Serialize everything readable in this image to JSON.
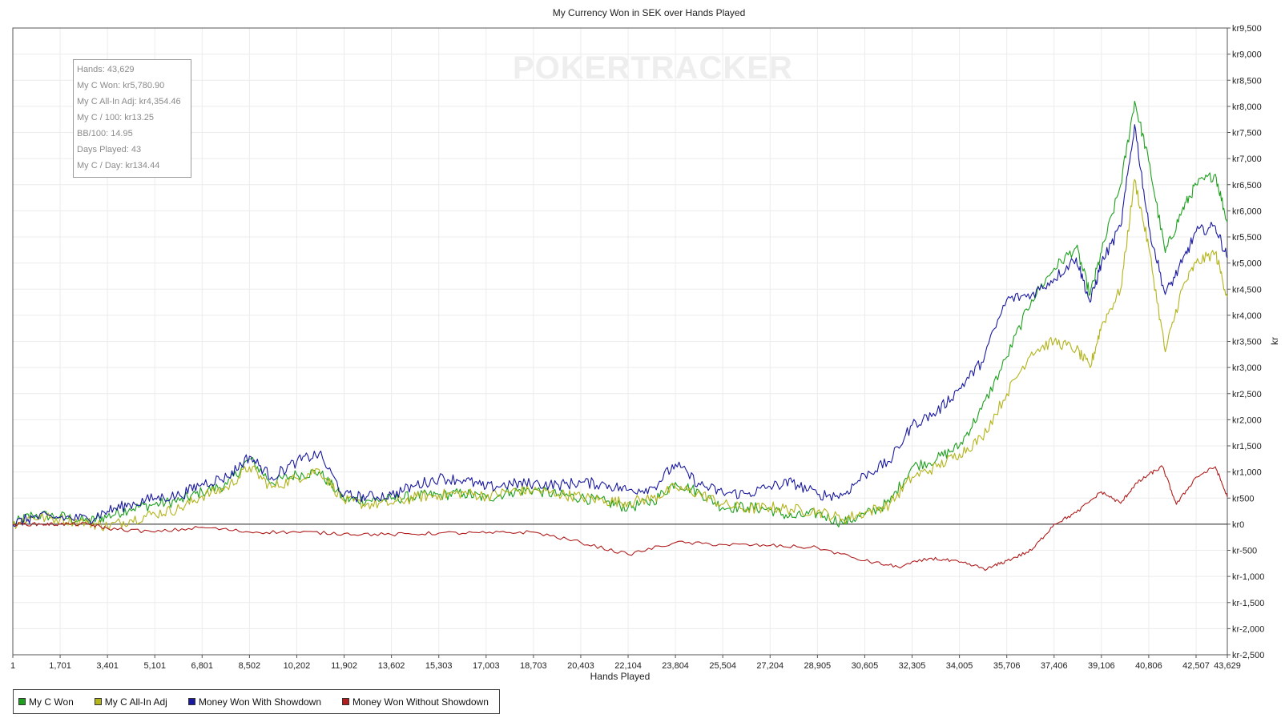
{
  "chart_data": {
    "type": "line",
    "title": "My Currency Won in SEK over Hands Played",
    "xlabel": "Hands Played",
    "ylabel": "kr",
    "xlim": [
      1,
      43629
    ],
    "ylim": [
      -2500,
      9500
    ],
    "x_ticks": [
      "1",
      "1,701",
      "3,401",
      "5,101",
      "6,801",
      "8,502",
      "10,202",
      "11,902",
      "13,602",
      "15,303",
      "17,003",
      "18,703",
      "20,403",
      "22,104",
      "23,804",
      "25,504",
      "27,204",
      "28,905",
      "30,605",
      "32,305",
      "34,005",
      "35,706",
      "37,406",
      "39,106",
      "40,806",
      "42,507",
      "43,629"
    ],
    "y_ticks": [
      "kr9,500",
      "kr9,000",
      "kr8,500",
      "kr8,000",
      "kr7,500",
      "kr7,000",
      "kr6,500",
      "kr6,000",
      "kr5,500",
      "kr5,000",
      "kr4,500",
      "kr4,000",
      "kr3,500",
      "kr3,000",
      "kr2,500",
      "kr2,000",
      "kr1,500",
      "kr1,000",
      "kr500",
      "kr0",
      "kr-500",
      "kr-1,000",
      "kr-1,500",
      "kr-2,000",
      "kr-2,500"
    ],
    "grid": true,
    "legend_position": "bottom-left",
    "watermark": "POKERTRACKER",
    "series": [
      {
        "name": "My C Won",
        "color": "#1ea01e",
        "points": [
          [
            1,
            0
          ],
          [
            700,
            180
          ],
          [
            1700,
            150
          ],
          [
            2700,
            50
          ],
          [
            3401,
            150
          ],
          [
            4200,
            300
          ],
          [
            5101,
            380
          ],
          [
            6000,
            450
          ],
          [
            6801,
            620
          ],
          [
            7700,
            760
          ],
          [
            8502,
            1250
          ],
          [
            9300,
            800
          ],
          [
            10202,
            950
          ],
          [
            11000,
            1000
          ],
          [
            11902,
            480
          ],
          [
            12700,
            460
          ],
          [
            13602,
            480
          ],
          [
            14500,
            540
          ],
          [
            15303,
            560
          ],
          [
            16200,
            590
          ],
          [
            17003,
            500
          ],
          [
            17900,
            620
          ],
          [
            18703,
            660
          ],
          [
            19600,
            560
          ],
          [
            20403,
            510
          ],
          [
            21300,
            420
          ],
          [
            22104,
            320
          ],
          [
            23000,
            440
          ],
          [
            23804,
            800
          ],
          [
            24700,
            600
          ],
          [
            25504,
            320
          ],
          [
            26400,
            330
          ],
          [
            27204,
            280
          ],
          [
            28000,
            130
          ],
          [
            28905,
            210
          ],
          [
            29800,
            30
          ],
          [
            30605,
            180
          ],
          [
            31500,
            420
          ],
          [
            32305,
            1100
          ],
          [
            33200,
            1250
          ],
          [
            34005,
            1500
          ],
          [
            34800,
            2200
          ],
          [
            35706,
            3200
          ],
          [
            36600,
            4300
          ],
          [
            37406,
            4900
          ],
          [
            38200,
            5300
          ],
          [
            38700,
            4400
          ],
          [
            39106,
            5200
          ],
          [
            39800,
            6500
          ],
          [
            40300,
            8100
          ],
          [
            40806,
            6950
          ],
          [
            41400,
            5200
          ],
          [
            42000,
            6000
          ],
          [
            42507,
            6500
          ],
          [
            43200,
            6700
          ],
          [
            43629,
            5780
          ]
        ]
      },
      {
        "name": "My C All-In Adj",
        "color": "#b3b31a",
        "points": [
          [
            1,
            0
          ],
          [
            700,
            140
          ],
          [
            1700,
            100
          ],
          [
            2700,
            30
          ],
          [
            3401,
            -40
          ],
          [
            4200,
            80
          ],
          [
            5101,
            200
          ],
          [
            6000,
            300
          ],
          [
            6801,
            540
          ],
          [
            7700,
            700
          ],
          [
            8502,
            1100
          ],
          [
            9300,
            700
          ],
          [
            10202,
            880
          ],
          [
            11000,
            1050
          ],
          [
            11902,
            450
          ],
          [
            12700,
            380
          ],
          [
            13602,
            400
          ],
          [
            14500,
            520
          ],
          [
            15303,
            560
          ],
          [
            16200,
            600
          ],
          [
            17003,
            540
          ],
          [
            17900,
            630
          ],
          [
            18703,
            650
          ],
          [
            19600,
            580
          ],
          [
            20403,
            520
          ],
          [
            21300,
            450
          ],
          [
            22104,
            420
          ],
          [
            23000,
            500
          ],
          [
            23804,
            700
          ],
          [
            24700,
            580
          ],
          [
            25504,
            380
          ],
          [
            26400,
            290
          ],
          [
            27204,
            330
          ],
          [
            28000,
            280
          ],
          [
            28905,
            250
          ],
          [
            29800,
            100
          ],
          [
            30605,
            220
          ],
          [
            31500,
            380
          ],
          [
            32305,
            900
          ],
          [
            33200,
            1100
          ],
          [
            34005,
            1350
          ],
          [
            34800,
            1650
          ],
          [
            35706,
            2500
          ],
          [
            36600,
            3300
          ],
          [
            37406,
            3500
          ],
          [
            38200,
            3350
          ],
          [
            38700,
            3000
          ],
          [
            39106,
            3800
          ],
          [
            39800,
            4500
          ],
          [
            40300,
            6600
          ],
          [
            40806,
            5300
          ],
          [
            41400,
            3300
          ],
          [
            42000,
            4500
          ],
          [
            42507,
            5000
          ],
          [
            43200,
            5200
          ],
          [
            43629,
            4354
          ]
        ]
      },
      {
        "name": "Money Won With Showdown",
        "color": "#1a1aa0",
        "points": [
          [
            1,
            0
          ],
          [
            700,
            130
          ],
          [
            1700,
            130
          ],
          [
            2700,
            100
          ],
          [
            3401,
            250
          ],
          [
            4200,
            380
          ],
          [
            5101,
            500
          ],
          [
            6000,
            550
          ],
          [
            6801,
            780
          ],
          [
            7700,
            900
          ],
          [
            8502,
            1300
          ],
          [
            9300,
            900
          ],
          [
            10202,
            1200
          ],
          [
            11000,
            1350
          ],
          [
            11902,
            550
          ],
          [
            12700,
            520
          ],
          [
            13602,
            560
          ],
          [
            14500,
            750
          ],
          [
            15303,
            880
          ],
          [
            16200,
            850
          ],
          [
            17003,
            700
          ],
          [
            17900,
            770
          ],
          [
            18703,
            780
          ],
          [
            19600,
            750
          ],
          [
            20403,
            800
          ],
          [
            21300,
            760
          ],
          [
            22104,
            650
          ],
          [
            23000,
            700
          ],
          [
            23804,
            1150
          ],
          [
            24700,
            750
          ],
          [
            25504,
            600
          ],
          [
            26400,
            580
          ],
          [
            27204,
            720
          ],
          [
            28000,
            800
          ],
          [
            28905,
            570
          ],
          [
            29800,
            550
          ],
          [
            30605,
            950
          ],
          [
            31500,
            1200
          ],
          [
            32305,
            1900
          ],
          [
            33200,
            2150
          ],
          [
            34005,
            2600
          ],
          [
            34800,
            3100
          ],
          [
            35706,
            4300
          ],
          [
            36600,
            4400
          ],
          [
            37406,
            4700
          ],
          [
            38200,
            5100
          ],
          [
            38700,
            4250
          ],
          [
            39106,
            5000
          ],
          [
            39800,
            5700
          ],
          [
            40300,
            7650
          ],
          [
            40806,
            5700
          ],
          [
            41400,
            4400
          ],
          [
            42000,
            5000
          ],
          [
            42507,
            5600
          ],
          [
            43200,
            5700
          ],
          [
            43629,
            5100
          ]
        ]
      },
      {
        "name": "Money Won Without Showdown",
        "color": "#b01e1e",
        "points": [
          [
            1,
            0
          ],
          [
            1000,
            0
          ],
          [
            1701,
            0
          ],
          [
            2700,
            0
          ],
          [
            3401,
            -80
          ],
          [
            5101,
            -150
          ],
          [
            6801,
            -60
          ],
          [
            8502,
            -150
          ],
          [
            10202,
            -150
          ],
          [
            11902,
            -180
          ],
          [
            13602,
            -200
          ],
          [
            15303,
            -170
          ],
          [
            17003,
            -170
          ],
          [
            18703,
            -150
          ],
          [
            20403,
            -350
          ],
          [
            22104,
            -580
          ],
          [
            23804,
            -350
          ],
          [
            25504,
            -390
          ],
          [
            27204,
            -410
          ],
          [
            28905,
            -450
          ],
          [
            30605,
            -700
          ],
          [
            31800,
            -820
          ],
          [
            33000,
            -650
          ],
          [
            34005,
            -730
          ],
          [
            35000,
            -860
          ],
          [
            35706,
            -700
          ],
          [
            36600,
            -500
          ],
          [
            37406,
            0
          ],
          [
            38200,
            220
          ],
          [
            39106,
            620
          ],
          [
            39800,
            400
          ],
          [
            40300,
            750
          ],
          [
            40806,
            950
          ],
          [
            41300,
            1100
          ],
          [
            41800,
            380
          ],
          [
            42507,
            900
          ],
          [
            43200,
            1100
          ],
          [
            43629,
            520
          ]
        ]
      }
    ],
    "summary": {
      "lines": [
        "Hands: 43,629",
        "My C Won: kr5,780.90",
        "My C All-In Adj: kr4,354.46",
        "My C / 100: kr13.25",
        "BB/100: 14.95",
        "Days Played: 43",
        "My C / Day: kr134.44"
      ]
    }
  }
}
